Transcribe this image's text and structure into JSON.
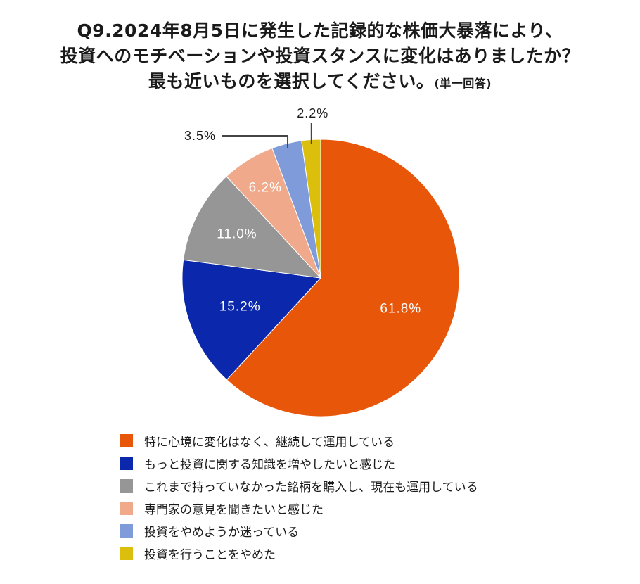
{
  "chart_data": {
    "type": "pie",
    "title_lines": [
      "Q9.2024年8月5日に発生した記録的な株価大暴落により、",
      "投資へのモチベーションや投資スタンスに変化はありましたか？",
      "最も近いものを選択してください。"
    ],
    "title_note": "(単一回答)",
    "slices": [
      {
        "label": "特に心境に変化はなく、継続して運用している",
        "value": 61.8,
        "value_label": "61.8%",
        "color": "#e8560a"
      },
      {
        "label": "もっと投資に関する知識を増やしたいと感じた",
        "value": 15.2,
        "value_label": "15.2%",
        "color": "#0b28ad"
      },
      {
        "label": "これまで持っていなかった銘柄を購入し、現在も運用している",
        "value": 11.0,
        "value_label": "11.0%",
        "color": "#969696"
      },
      {
        "label": "専門家の意見を聞きたいと感じた",
        "value": 6.2,
        "value_label": "6.2%",
        "color": "#f1a98b"
      },
      {
        "label": "投資をやめようか迷っている",
        "value": 3.5,
        "value_label": "3.5%",
        "color": "#7f9bd9"
      },
      {
        "label": "投資を行うことをやめた",
        "value": 2.2,
        "value_label": "2.2%",
        "color": "#dbbf0c"
      }
    ]
  }
}
